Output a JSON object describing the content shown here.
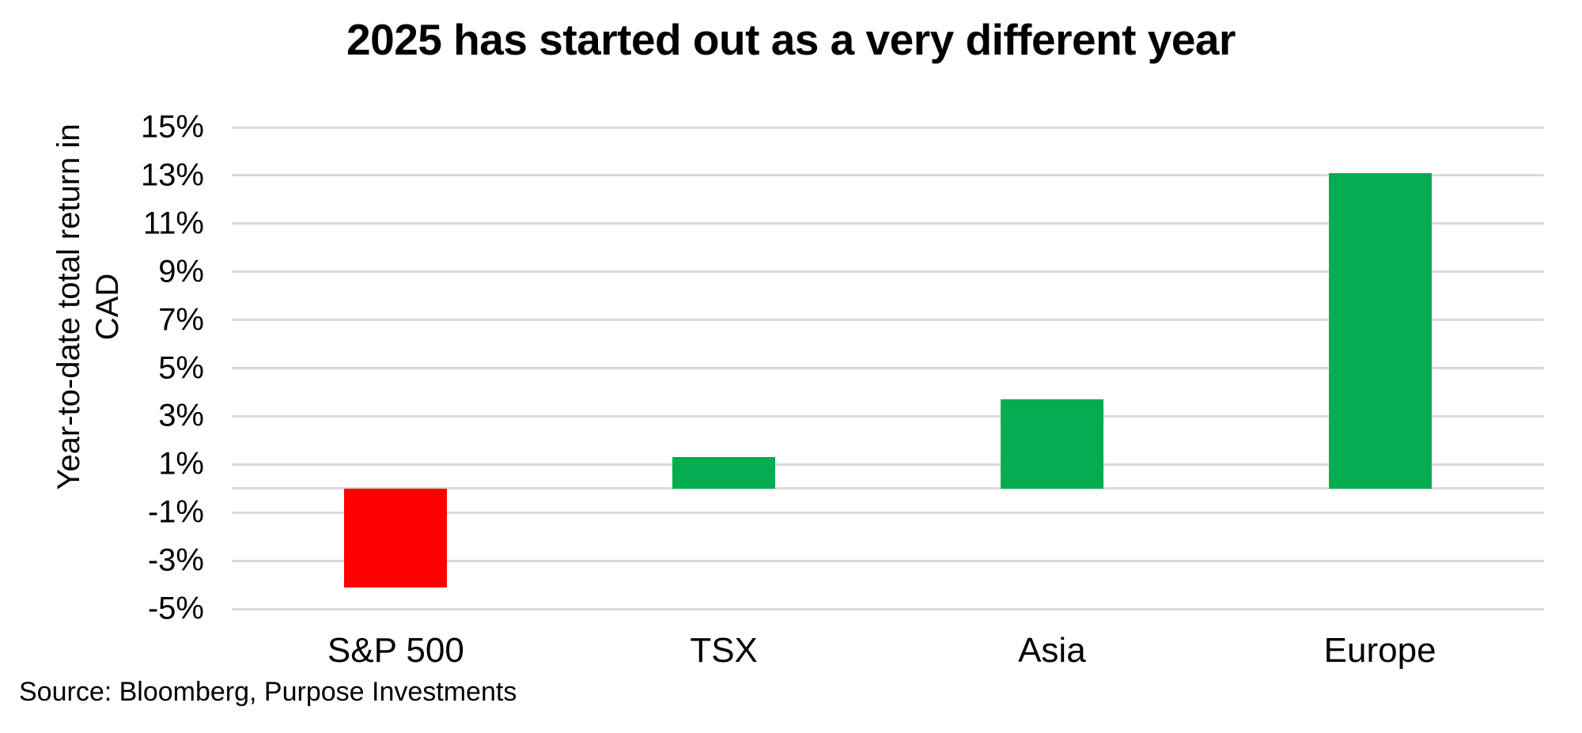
{
  "title": "2025 has started out as a very different year",
  "source": "Source: Bloomberg, Purpose Investments",
  "y_axis": {
    "label_line1": "Year-to-date total return in",
    "label_line2": "CAD"
  },
  "chart_data": {
    "type": "bar",
    "title": "2025 has started out as a very different year",
    "categories": [
      "S&P 500",
      "TSX",
      "Asia",
      "Europe"
    ],
    "values": [
      -4.1,
      1.3,
      3.7,
      13.1
    ],
    "xlabel": "",
    "ylabel": "Year-to-date total return in CAD",
    "ylabel_lines": [
      "Year-to-date total return in",
      "CAD"
    ],
    "ylim": [
      -5,
      15
    ],
    "yticks": [
      15,
      13,
      11,
      9,
      7,
      5,
      3,
      1,
      -1,
      -3,
      -5
    ],
    "ytick_labels": [
      "15%",
      "13%",
      "11%",
      "9%",
      "7%",
      "5%",
      "3%",
      "1%",
      "-1%",
      "-3%",
      "-5%"
    ],
    "grid": true,
    "legend": false,
    "baseline": 0,
    "colors": {
      "positive_bar": "#05AC50",
      "negative_bar": "#FF0000",
      "gridline": "#D9D9D9",
      "text": "#000000",
      "background": "#FFFFFF"
    },
    "source": "Source: Bloomberg, Purpose Investments"
  }
}
